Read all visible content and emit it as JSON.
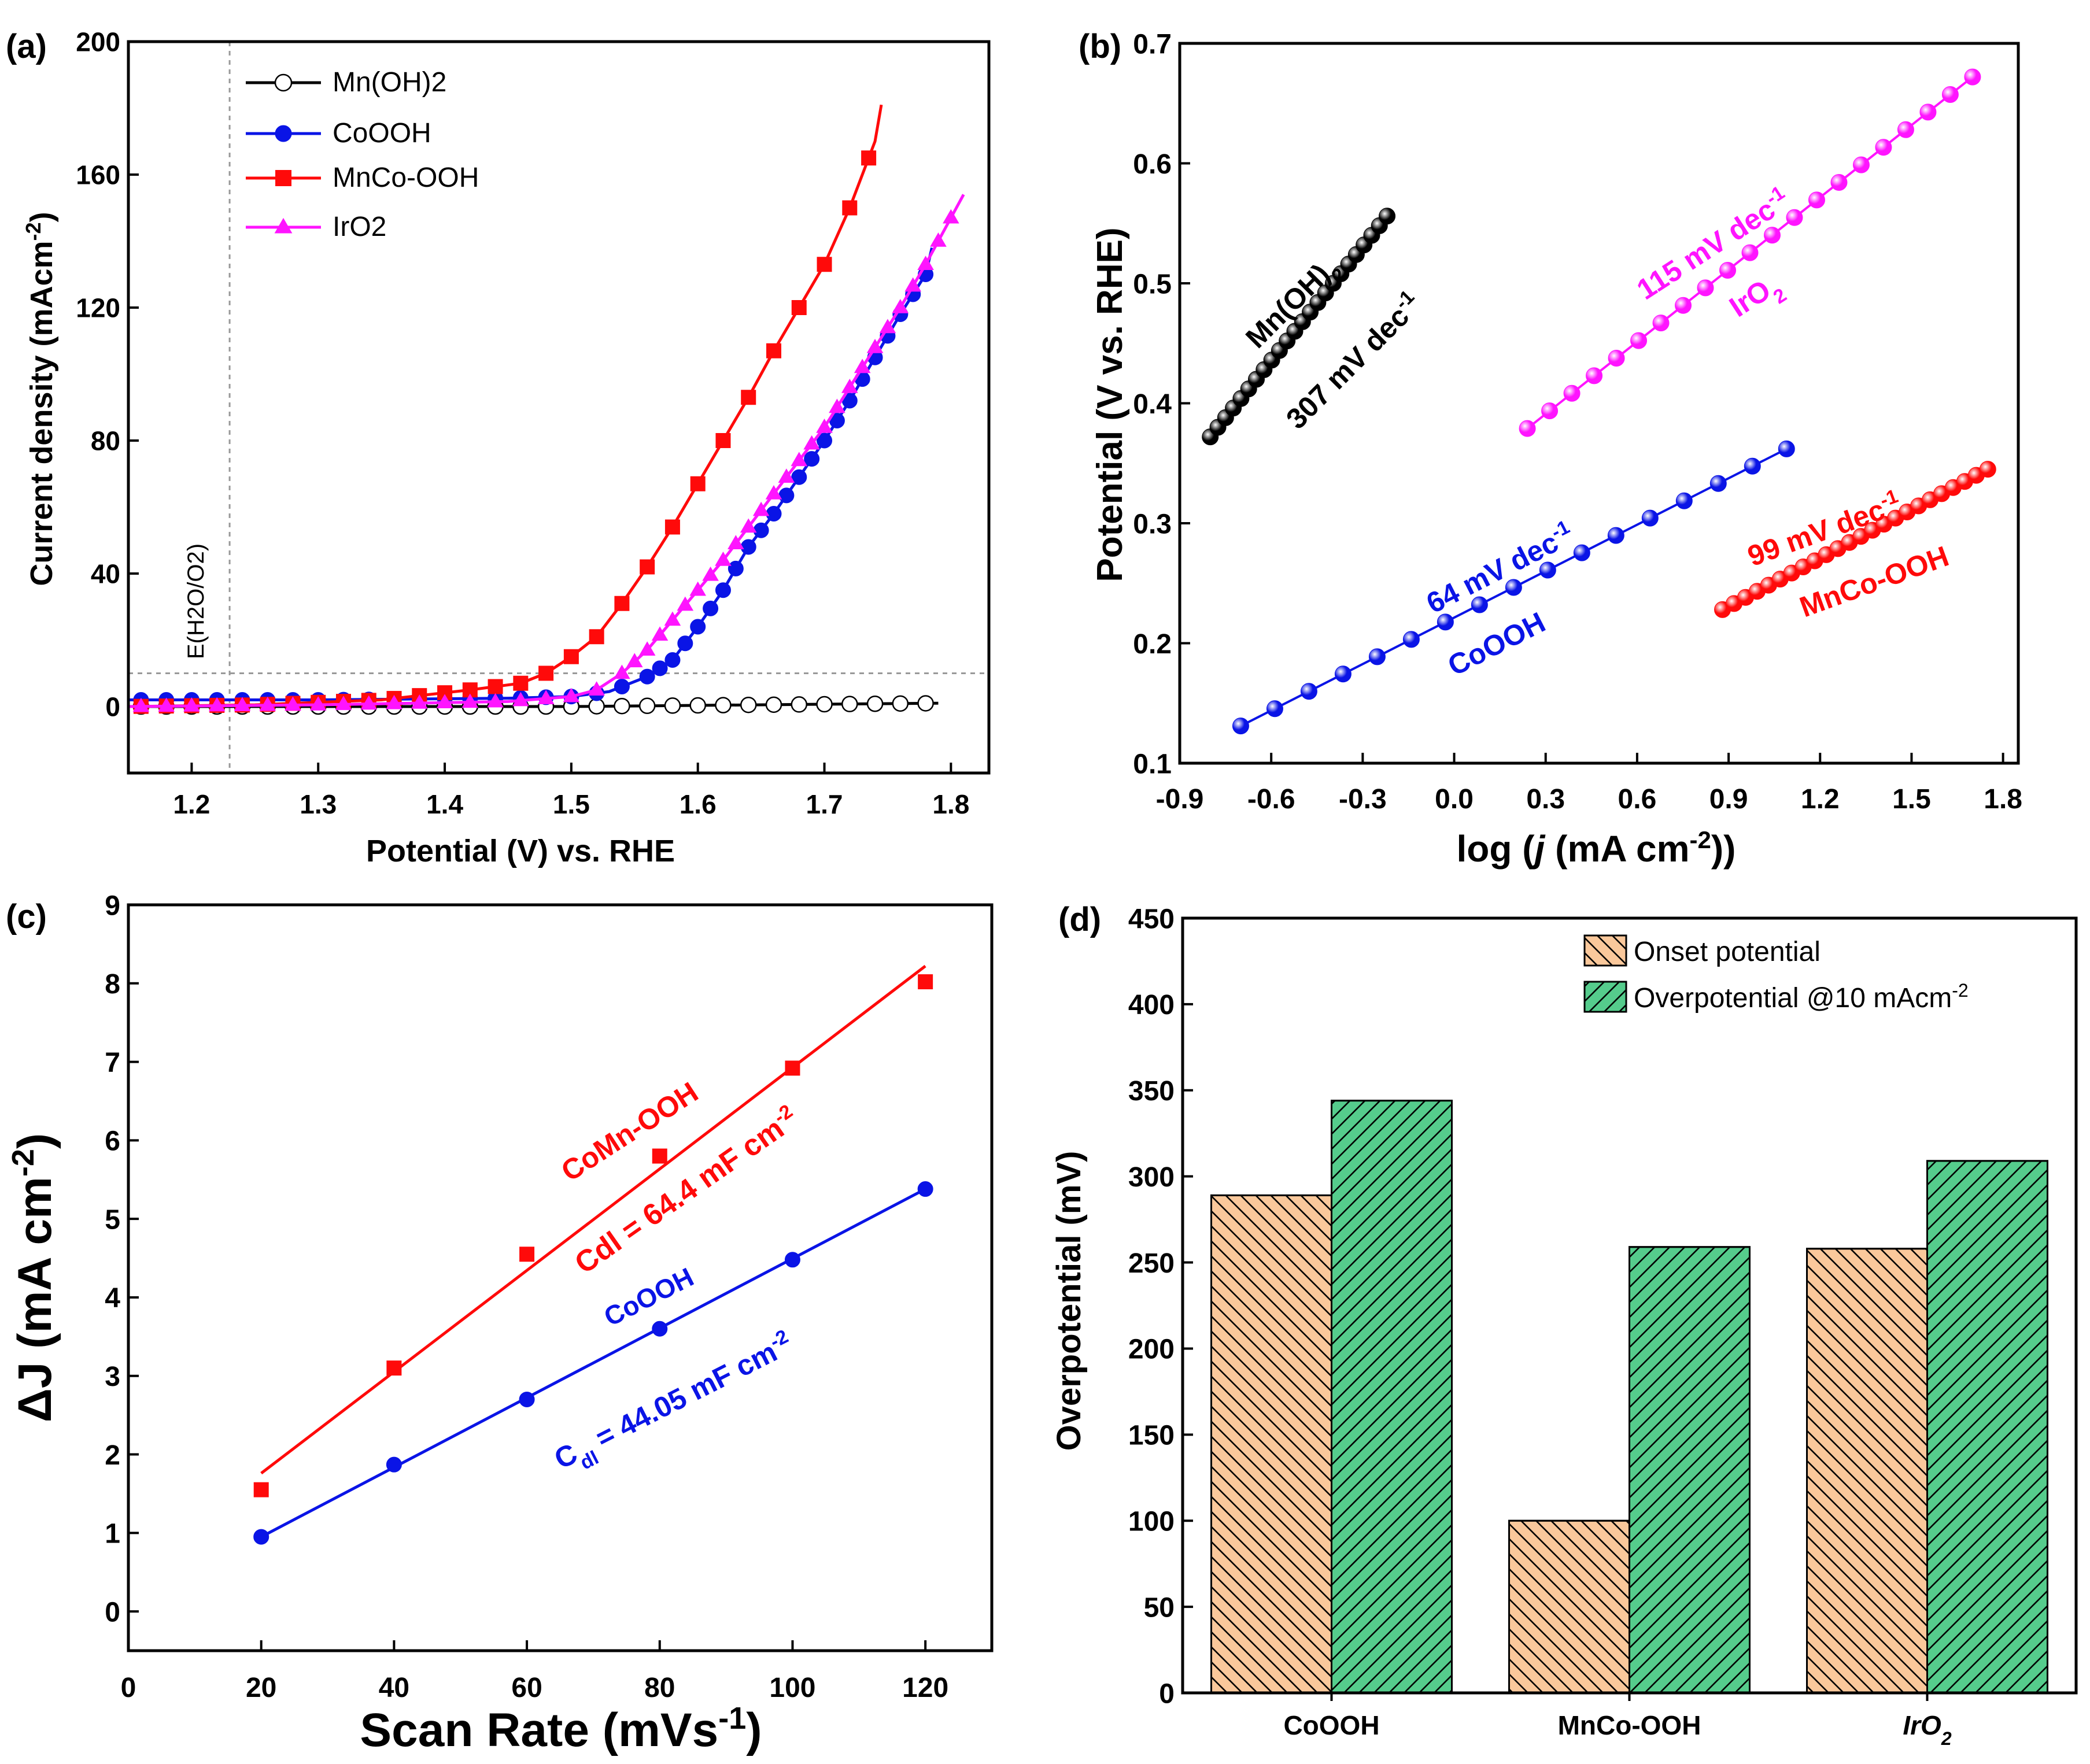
{
  "figure_title": "OER performance of Mn(OH)2, CoOOH, MnCo-OOH and IrO2",
  "colors": {
    "black": "#000000",
    "blue": "#0a14e6",
    "red": "#ff0a0a",
    "magenta": "#ff14ff",
    "orange": "#fac89b",
    "green": "#55cc8c",
    "grid": "#aaaaaa"
  },
  "chart_data": [
    {
      "id": "a",
      "panel_label": "(a)",
      "type": "line",
      "xlabel": "Potential (V) vs. RHE",
      "ylabel": "Current density (mAcm-2)",
      "ylabel_base": "Current density (mAcm",
      "ylabel_sup": "-2",
      "ylabel_close": ")",
      "xlim": [
        1.15,
        1.83
      ],
      "ylim": [
        -20,
        200
      ],
      "xticks": [
        1.2,
        1.3,
        1.4,
        1.5,
        1.6,
        1.7,
        1.8
      ],
      "xtick_labels": [
        "1.2",
        "1.3",
        "1.4",
        "1.5",
        "1.6",
        "1.7",
        "1.8"
      ],
      "yticks": [
        0,
        40,
        80,
        120,
        160,
        200
      ],
      "ytick_labels": [
        "0",
        "40",
        "80",
        "120",
        "160",
        "200"
      ],
      "reference_x": 1.23,
      "reference_y": 10,
      "reference_label": "E(H2O/O2)",
      "legend": [
        "Mn(OH)2",
        "CoOOH",
        "MnCo-OOH",
        "IrO2"
      ],
      "series": [
        {
          "name": "Mn(OH)2",
          "color": "#000000",
          "marker": "open-circle",
          "x": [
            1.15,
            1.3,
            1.5,
            1.79
          ],
          "y": [
            0,
            0,
            0,
            1
          ],
          "marker_x": [
            1.16,
            1.18,
            1.2,
            1.22,
            1.24,
            1.26,
            1.28,
            1.3,
            1.32,
            1.34,
            1.36,
            1.38,
            1.4,
            1.42,
            1.44,
            1.46,
            1.48,
            1.5,
            1.52,
            1.54,
            1.56,
            1.58,
            1.6,
            1.62,
            1.64,
            1.66,
            1.68,
            1.7,
            1.72,
            1.74,
            1.76,
            1.78
          ]
        },
        {
          "name": "CoOOH",
          "color": "#0a14e6",
          "marker": "filled-circle",
          "x": [
            1.15,
            1.3,
            1.45,
            1.5,
            1.53,
            1.56,
            1.58,
            1.6,
            1.62,
            1.64,
            1.66,
            1.68,
            1.7,
            1.72,
            1.74,
            1.76,
            1.78,
            1.785
          ],
          "y": [
            2,
            2,
            2.5,
            3,
            4.5,
            9,
            14,
            24,
            35,
            48,
            58,
            69,
            80,
            92,
            105,
            118,
            130,
            138
          ],
          "marker_x": [
            1.16,
            1.18,
            1.2,
            1.22,
            1.24,
            1.26,
            1.28,
            1.3,
            1.32,
            1.34,
            1.36,
            1.38,
            1.4,
            1.42,
            1.44,
            1.46,
            1.48,
            1.5,
            1.52,
            1.54,
            1.56,
            1.57,
            1.58,
            1.59,
            1.6,
            1.61,
            1.62,
            1.63,
            1.64,
            1.65,
            1.66,
            1.67,
            1.68,
            1.69,
            1.7,
            1.71,
            1.72,
            1.73,
            1.74,
            1.75,
            1.76,
            1.77,
            1.78
          ]
        },
        {
          "name": "MnCo-OOH",
          "color": "#ff0a0a",
          "marker": "filled-square",
          "x": [
            1.15,
            1.25,
            1.35,
            1.42,
            1.46,
            1.48,
            1.5,
            1.52,
            1.54,
            1.56,
            1.58,
            1.6,
            1.62,
            1.64,
            1.66,
            1.68,
            1.7,
            1.72,
            1.74,
            1.745
          ],
          "y": [
            0,
            0.5,
            2,
            5,
            7,
            10,
            15,
            21,
            31,
            42,
            54,
            67,
            80,
            93,
            107,
            120,
            133,
            150,
            170,
            181
          ],
          "marker_x": [
            1.16,
            1.18,
            1.2,
            1.22,
            1.24,
            1.26,
            1.28,
            1.3,
            1.32,
            1.34,
            1.36,
            1.38,
            1.4,
            1.42,
            1.44,
            1.46,
            1.48,
            1.5,
            1.52,
            1.54,
            1.56,
            1.58,
            1.6,
            1.62,
            1.64,
            1.66,
            1.68,
            1.7,
            1.72,
            1.735
          ]
        },
        {
          "name": "IrO2",
          "color": "#ff14ff",
          "marker": "filled-triangle",
          "x": [
            1.15,
            1.3,
            1.45,
            1.5,
            1.52,
            1.54,
            1.56,
            1.58,
            1.6,
            1.62,
            1.64,
            1.66,
            1.68,
            1.7,
            1.72,
            1.74,
            1.76,
            1.78,
            1.8,
            1.81
          ],
          "y": [
            0,
            0.5,
            1.5,
            3,
            5,
            10,
            17,
            26,
            35,
            44,
            54,
            64,
            74,
            84,
            96,
            108,
            120,
            133,
            147,
            154
          ],
          "marker_x": [
            1.16,
            1.18,
            1.2,
            1.22,
            1.24,
            1.26,
            1.28,
            1.3,
            1.32,
            1.34,
            1.36,
            1.38,
            1.4,
            1.42,
            1.44,
            1.46,
            1.48,
            1.5,
            1.52,
            1.54,
            1.55,
            1.56,
            1.57,
            1.58,
            1.59,
            1.6,
            1.61,
            1.62,
            1.63,
            1.64,
            1.65,
            1.66,
            1.67,
            1.68,
            1.69,
            1.7,
            1.71,
            1.72,
            1.73,
            1.74,
            1.75,
            1.76,
            1.77,
            1.78,
            1.79,
            1.8
          ]
        }
      ]
    },
    {
      "id": "b",
      "panel_label": "(b)",
      "type": "scatter",
      "xlabel": "log (j (mA cm-2))",
      "xlabel_parts": [
        "log (",
        "j",
        " (mA cm",
        "-2",
        "))"
      ],
      "ylabel": "Potential (V vs. RHE)",
      "xlim": [
        -0.9,
        1.85
      ],
      "ylim": [
        0.1,
        0.7
      ],
      "xticks": [
        -0.9,
        -0.6,
        -0.3,
        0.0,
        0.3,
        0.6,
        0.9,
        1.2,
        1.5,
        1.8
      ],
      "xtick_labels": [
        "-0.9",
        "-0.6",
        "-0.3",
        "0.0",
        "0.3",
        "0.6",
        "0.9",
        "1.2",
        "1.5",
        "1.8"
      ],
      "yticks": [
        0.1,
        0.2,
        0.3,
        0.4,
        0.5,
        0.6,
        0.7
      ],
      "ytick_labels": [
        "0.1",
        "0.2",
        "0.3",
        "0.4",
        "0.5",
        "0.6",
        "0.7"
      ],
      "series": [
        {
          "name": "Mn(OH)2",
          "color": "#000000",
          "x_start": -0.8,
          "x_end": -0.22,
          "y_start": 0.372,
          "y_end": 0.556,
          "points": 24,
          "label": "Mn(OH)2",
          "label_base": "Mn(OH)",
          "label_sub": "2",
          "slope_label": "307 mV dec-1",
          "slope_base": "307 mV dec",
          "slope_sup": "-1"
        },
        {
          "name": "CoOOH",
          "color": "#0a14e6",
          "x_start": -0.7,
          "x_end": 1.09,
          "y_start": 0.131,
          "y_end": 0.362,
          "points": 17,
          "label": "CoOOH",
          "slope_label": "64 mV dec-1",
          "slope_base": "64 mV dec",
          "slope_sup": "-1"
        },
        {
          "name": "MnCo-OOH",
          "color": "#ff0a0a",
          "x_start": 0.88,
          "x_end": 1.75,
          "y_start": 0.228,
          "y_end": 0.345,
          "points": 24,
          "label": "MnCo-OOH",
          "slope_label": "99 mV dec-1",
          "slope_base": "99 mV dec",
          "slope_sup": "-1"
        },
        {
          "name": "IrO2",
          "color": "#ff14ff",
          "x_start": 0.24,
          "x_end": 1.7,
          "y_start": 0.379,
          "y_end": 0.672,
          "points": 21,
          "label": "IrO2",
          "label_base": "IrO",
          "label_sub": "2",
          "slope_label": "115 mV dec-1",
          "slope_base": "115 mV dec",
          "slope_sup": "-1"
        }
      ]
    },
    {
      "id": "c",
      "panel_label": "(c)",
      "type": "scatter",
      "xlabel": "Scan Rate (mVs-1)",
      "xlabel_base": "Scan Rate (mVs",
      "xlabel_sup": "-1",
      "xlabel_close": ")",
      "ylabel": "ΔJ (mA cm-2)",
      "ylabel_base": "ΔJ (mA cm",
      "ylabel_sup": "-2",
      "ylabel_close": ")",
      "xlim": [
        0,
        130
      ],
      "ylim": [
        -0.5,
        9
      ],
      "xticks": [
        0,
        20,
        40,
        60,
        80,
        100,
        120
      ],
      "xtick_labels": [
        "0",
        "20",
        "40",
        "60",
        "80",
        "100",
        "120"
      ],
      "yticks": [
        0,
        1,
        2,
        3,
        4,
        5,
        6,
        7,
        8,
        9
      ],
      "ytick_labels": [
        "0",
        "1",
        "2",
        "3",
        "4",
        "5",
        "6",
        "7",
        "8",
        "9"
      ],
      "series": [
        {
          "name": "CoMn-OOH",
          "color": "#ff0a0a",
          "marker": "filled-square",
          "x": [
            20,
            40,
            60,
            80,
            100,
            120
          ],
          "y": [
            1.55,
            3.1,
            4.55,
            5.8,
            6.92,
            8.02
          ],
          "fit_x": [
            20,
            120
          ],
          "fit_y": [
            1.76,
            8.22
          ],
          "label": "CoMn-OOH",
          "cap_label": "Cdl = 64.4 mF cm-2",
          "cap_base": "Cdl = 64.4 mF cm",
          "cap_sup": "-2"
        },
        {
          "name": "CoOOH",
          "color": "#0a14e6",
          "marker": "filled-circle",
          "x": [
            20,
            40,
            60,
            80,
            100,
            120
          ],
          "y": [
            0.95,
            1.87,
            2.7,
            3.6,
            4.48,
            5.38
          ],
          "fit_x": [
            20,
            120
          ],
          "fit_y": [
            0.95,
            5.38
          ],
          "label": "CoOOH",
          "cap_label": "Cdl = 44.05 mF cm-2",
          "cap_c": "C",
          "cap_sub": "dl",
          "cap_base": " = 44.05 mF cm",
          "cap_sup": "-2"
        }
      ]
    },
    {
      "id": "d",
      "panel_label": "(d)",
      "type": "bar",
      "ylabel": "Overpotential (mV)",
      "ylim": [
        0,
        450
      ],
      "yticks": [
        0,
        50,
        100,
        150,
        200,
        250,
        300,
        350,
        400,
        450
      ],
      "ytick_labels": [
        "0",
        "50",
        "100",
        "150",
        "200",
        "250",
        "300",
        "350",
        "400",
        "450"
      ],
      "categories": [
        "CoOOH",
        "MnCo-OOH",
        "IrO2"
      ],
      "category_display": [
        {
          "base": "CoOOH",
          "sub": ""
        },
        {
          "base": "MnCo-OOH",
          "sub": ""
        },
        {
          "base": "IrO",
          "sub": "2"
        }
      ],
      "legend": [
        {
          "label": "Onset potential",
          "base": "Onset potential",
          "sup": ""
        },
        {
          "label": "Overpotential @10 mAcm-2",
          "base": "Overpotential @10 mAcm",
          "sup": "-2"
        }
      ],
      "series": [
        {
          "name": "Onset potential",
          "color": "#fac89b",
          "hatch": "down",
          "values": [
            289,
            100,
            258
          ]
        },
        {
          "name": "Overpotential @10 mAcm-2",
          "color": "#55cc8c",
          "hatch": "up",
          "values": [
            344,
            259,
            309
          ]
        }
      ]
    }
  ]
}
